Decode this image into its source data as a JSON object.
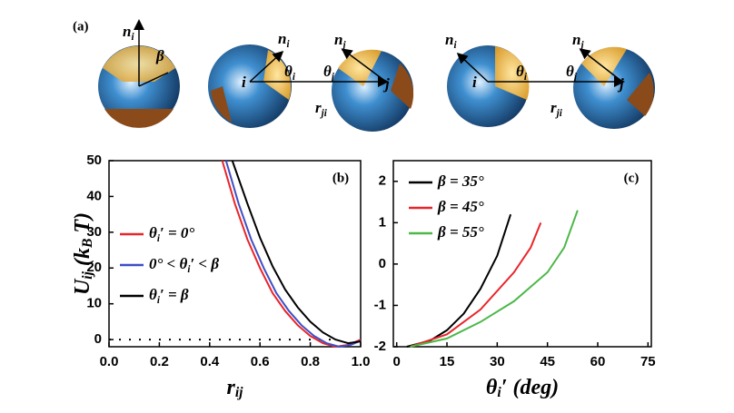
{
  "diagram": {
    "panel": "(a)",
    "labels": [
      [
        {
          "t": "n"
        },
        {
          "t": "i",
          "sub": true
        }
      ],
      [
        {
          "t": "β"
        }
      ],
      [
        {
          "t": "i"
        }
      ],
      [
        {
          "t": "n"
        },
        {
          "t": "i",
          "sub": true
        }
      ],
      [
        {
          "t": "θ"
        },
        {
          "t": "i",
          "sub": true
        }
      ],
      [
        {
          "t": "r"
        },
        {
          "t": "ji",
          "sub": true
        }
      ],
      [
        {
          "t": "n"
        },
        {
          "t": "j",
          "sub": true
        }
      ],
      [
        {
          "t": "θ"
        },
        {
          "t": "j",
          "sub": true
        }
      ],
      [
        {
          "t": "j"
        }
      ],
      [
        {
          "t": "n"
        },
        {
          "t": "i",
          "sub": true
        }
      ],
      [
        {
          "t": "i"
        }
      ],
      [
        {
          "t": "θ"
        },
        {
          "t": "i",
          "sub": true
        }
      ],
      [
        {
          "t": "r"
        },
        {
          "t": "ji",
          "sub": true
        }
      ],
      [
        {
          "t": "n"
        },
        {
          "t": "j",
          "sub": true
        }
      ],
      [
        {
          "t": "θ"
        },
        {
          "t": "j",
          "sub": true
        }
      ],
      [
        {
          "t": "j"
        }
      ]
    ]
  },
  "chart_data": [
    {
      "type": "line",
      "panel": "(b)",
      "x_label": [
        {
          "t": "r"
        },
        {
          "t": "ij",
          "sub": true
        }
      ],
      "y_label": [
        {
          "t": "U"
        },
        {
          "t": "ij",
          "sub": true
        },
        {
          "t": " (k"
        },
        {
          "t": "B",
          "sub": true
        },
        {
          "t": " T)"
        }
      ],
      "xlim": [
        0,
        1
      ],
      "ylim": [
        -2,
        50
      ],
      "xticks": [
        {
          "value": 0,
          "label": "0.0"
        },
        {
          "value": 0.2,
          "label": "0.2"
        },
        {
          "value": 0.4,
          "label": "0.4"
        },
        {
          "value": 0.6,
          "label": "0.6"
        },
        {
          "value": 0.8,
          "label": "0.8"
        },
        {
          "value": 1,
          "label": "1.0"
        }
      ],
      "yticks": [
        0,
        10,
        20,
        30,
        40,
        50
      ],
      "reference_line": 0,
      "reference_line_end": 0.9,
      "series": [
        {
          "name": [
            {
              "t": "θ"
            },
            {
              "t": "i",
              "sub": true
            },
            {
              "t": "′ = 0°"
            }
          ],
          "color": "#e8252a",
          "x": [
            0.45,
            0.5,
            0.55,
            0.6,
            0.65,
            0.7,
            0.75,
            0.8,
            0.85,
            0.9,
            0.95,
            1.0
          ],
          "values": [
            50,
            38,
            28,
            20,
            13,
            8,
            4,
            1,
            -1,
            -2,
            -1.5,
            0
          ]
        },
        {
          "name": [
            {
              "t": "0° < θ"
            },
            {
              "t": "i",
              "sub": true
            },
            {
              "t": "′ < β"
            }
          ],
          "color": "#3f4fc4",
          "x": [
            0.465,
            0.515,
            0.565,
            0.615,
            0.665,
            0.715,
            0.765,
            0.815,
            0.865,
            0.915,
            0.96,
            1.0
          ],
          "values": [
            50,
            38,
            28,
            20,
            13,
            8,
            4,
            1,
            -1,
            -2,
            -1.5,
            -0.3
          ]
        },
        {
          "name": [
            {
              "t": "θ"
            },
            {
              "t": "i",
              "sub": true
            },
            {
              "t": "′ = β"
            }
          ],
          "color": "#000000",
          "x": [
            0.49,
            0.55,
            0.6,
            0.65,
            0.7,
            0.75,
            0.8,
            0.85,
            0.9,
            0.95,
            1.0
          ],
          "values": [
            50,
            38,
            28.5,
            20.5,
            14,
            9,
            5,
            2,
            0,
            -1,
            -0.5
          ]
        }
      ]
    },
    {
      "type": "line",
      "panel": "(c)",
      "x_label": [
        {
          "t": "θ"
        },
        {
          "t": "i",
          "sub": true
        },
        {
          "t": "′ (deg)"
        }
      ],
      "xlim": [
        -1,
        76
      ],
      "ylim": [
        -2,
        2.5
      ],
      "xticks": [
        0,
        15,
        30,
        45,
        60,
        75
      ],
      "yticks": [
        -2,
        -1,
        0,
        1,
        2
      ],
      "series": [
        {
          "name": [
            {
              "t": "β = 35°"
            }
          ],
          "color": "#000000",
          "x": [
            3,
            10,
            15,
            20,
            25,
            30,
            34
          ],
          "values": [
            -2,
            -1.85,
            -1.6,
            -1.2,
            -0.6,
            0.2,
            1.2
          ]
        },
        {
          "name": [
            {
              "t": "β = 45°"
            }
          ],
          "color": "#e8252a",
          "x": [
            4,
            15,
            25,
            35,
            40,
            43
          ],
          "values": [
            -2,
            -1.7,
            -1.1,
            -0.2,
            0.4,
            1.0
          ]
        },
        {
          "name": [
            {
              "t": "β = 55°"
            }
          ],
          "color": "#4cb848",
          "x": [
            4,
            15,
            25,
            35,
            45,
            50,
            54
          ],
          "values": [
            -2,
            -1.8,
            -1.4,
            -0.9,
            -0.2,
            0.4,
            1.3
          ]
        }
      ]
    }
  ]
}
